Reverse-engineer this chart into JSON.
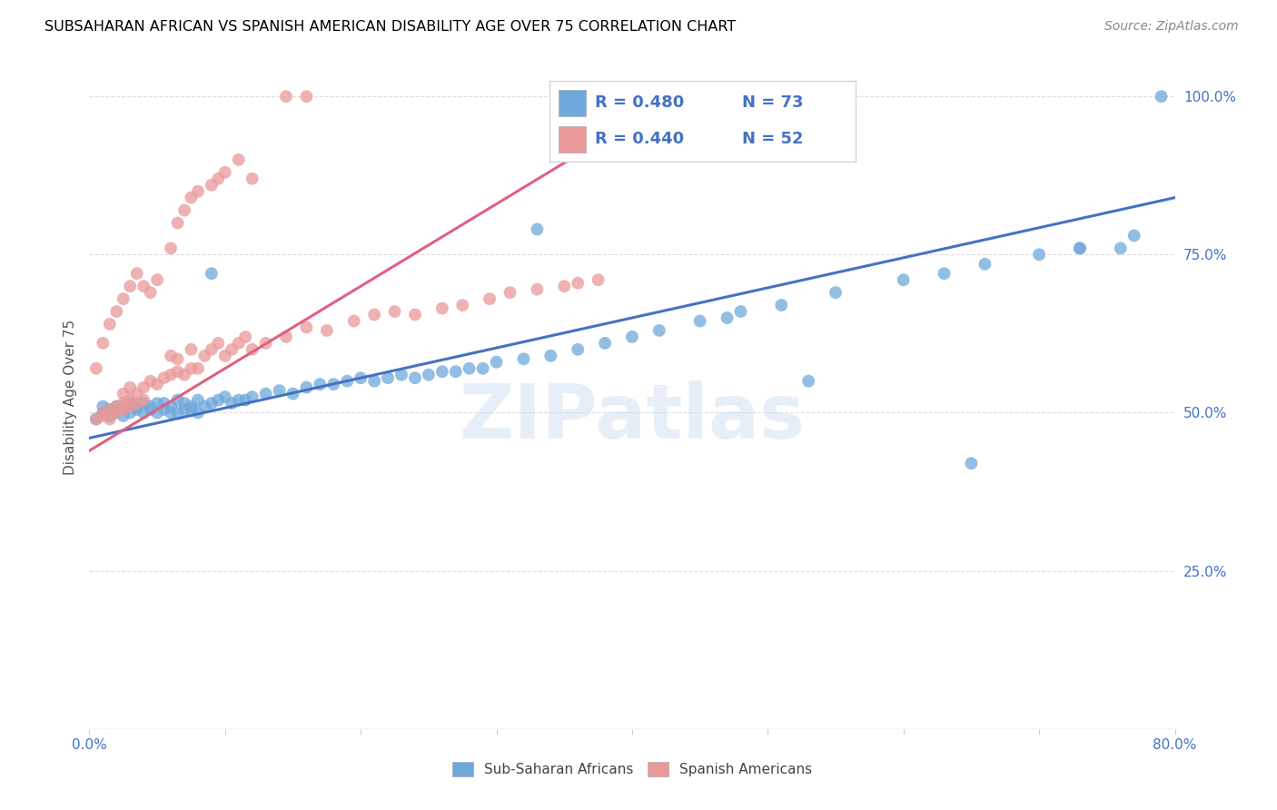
{
  "title": "SUBSAHARAN AFRICAN VS SPANISH AMERICAN DISABILITY AGE OVER 75 CORRELATION CHART",
  "source": "Source: ZipAtlas.com",
  "ylabel": "Disability Age Over 75",
  "watermark": "ZIPatlas",
  "xlim": [
    0.0,
    0.8
  ],
  "ylim": [
    0.0,
    1.05
  ],
  "yticks_right": [
    0.25,
    0.5,
    0.75,
    1.0
  ],
  "ytick_right_labels": [
    "25.0%",
    "50.0%",
    "75.0%",
    "100.0%"
  ],
  "blue_color": "#6fa8dc",
  "pink_color": "#ea9999",
  "blue_line_color": "#4472c4",
  "pink_line_color": "#e06080",
  "legend_label_blue": "Sub-Saharan Africans",
  "legend_label_pink": "Spanish Americans",
  "blue_scatter_x": [
    0.005,
    0.01,
    0.01,
    0.015,
    0.015,
    0.02,
    0.02,
    0.025,
    0.025,
    0.03,
    0.03,
    0.035,
    0.035,
    0.04,
    0.04,
    0.045,
    0.045,
    0.05,
    0.05,
    0.055,
    0.055,
    0.06,
    0.06,
    0.065,
    0.065,
    0.07,
    0.07,
    0.075,
    0.075,
    0.08,
    0.08,
    0.085,
    0.09,
    0.095,
    0.1,
    0.105,
    0.11,
    0.115,
    0.12,
    0.13,
    0.14,
    0.15,
    0.16,
    0.17,
    0.18,
    0.19,
    0.2,
    0.21,
    0.22,
    0.23,
    0.24,
    0.25,
    0.26,
    0.27,
    0.28,
    0.29,
    0.3,
    0.32,
    0.34,
    0.36,
    0.38,
    0.4,
    0.42,
    0.45,
    0.48,
    0.51,
    0.55,
    0.6,
    0.63,
    0.66,
    0.7,
    0.73,
    0.77
  ],
  "blue_scatter_y": [
    0.49,
    0.5,
    0.51,
    0.495,
    0.505,
    0.5,
    0.51,
    0.495,
    0.51,
    0.5,
    0.515,
    0.505,
    0.51,
    0.5,
    0.515,
    0.505,
    0.51,
    0.5,
    0.515,
    0.505,
    0.515,
    0.5,
    0.51,
    0.5,
    0.52,
    0.505,
    0.515,
    0.505,
    0.51,
    0.5,
    0.52,
    0.51,
    0.515,
    0.52,
    0.525,
    0.515,
    0.52,
    0.52,
    0.525,
    0.53,
    0.535,
    0.53,
    0.54,
    0.545,
    0.545,
    0.55,
    0.555,
    0.55,
    0.555,
    0.56,
    0.555,
    0.56,
    0.565,
    0.565,
    0.57,
    0.57,
    0.58,
    0.585,
    0.59,
    0.6,
    0.61,
    0.62,
    0.63,
    0.645,
    0.66,
    0.67,
    0.69,
    0.71,
    0.72,
    0.735,
    0.75,
    0.76,
    0.78
  ],
  "blue_outlier_x": [
    0.09,
    0.33,
    0.47,
    0.53,
    0.65,
    0.73,
    0.76,
    0.79
  ],
  "blue_outlier_y": [
    0.72,
    0.79,
    0.65,
    0.55,
    0.42,
    0.76,
    0.76,
    1.0
  ],
  "pink_scatter_x": [
    0.005,
    0.01,
    0.01,
    0.015,
    0.015,
    0.02,
    0.02,
    0.025,
    0.025,
    0.025,
    0.03,
    0.03,
    0.03,
    0.035,
    0.035,
    0.04,
    0.04,
    0.045,
    0.05,
    0.055,
    0.06,
    0.06,
    0.065,
    0.065,
    0.07,
    0.075,
    0.075,
    0.08,
    0.085,
    0.09,
    0.095,
    0.1,
    0.105,
    0.11,
    0.115,
    0.12,
    0.13,
    0.145,
    0.16,
    0.175,
    0.195,
    0.21,
    0.225,
    0.24,
    0.26,
    0.275,
    0.295,
    0.31,
    0.33,
    0.35,
    0.36,
    0.375
  ],
  "pink_scatter_y": [
    0.49,
    0.495,
    0.5,
    0.49,
    0.505,
    0.5,
    0.51,
    0.505,
    0.515,
    0.53,
    0.51,
    0.52,
    0.54,
    0.515,
    0.53,
    0.52,
    0.54,
    0.55,
    0.545,
    0.555,
    0.56,
    0.59,
    0.565,
    0.585,
    0.56,
    0.57,
    0.6,
    0.57,
    0.59,
    0.6,
    0.61,
    0.59,
    0.6,
    0.61,
    0.62,
    0.6,
    0.61,
    0.62,
    0.635,
    0.63,
    0.645,
    0.655,
    0.66,
    0.655,
    0.665,
    0.67,
    0.68,
    0.69,
    0.695,
    0.7,
    0.705,
    0.71
  ],
  "pink_outlier_x": [
    0.005,
    0.01,
    0.015,
    0.02,
    0.025,
    0.03,
    0.035,
    0.04,
    0.045,
    0.05,
    0.06,
    0.065,
    0.07,
    0.075,
    0.08,
    0.09,
    0.095,
    0.1,
    0.11,
    0.12,
    0.145,
    0.16
  ],
  "pink_outlier_y": [
    0.57,
    0.61,
    0.64,
    0.66,
    0.68,
    0.7,
    0.72,
    0.7,
    0.69,
    0.71,
    0.76,
    0.8,
    0.82,
    0.84,
    0.85,
    0.86,
    0.87,
    0.88,
    0.9,
    0.87,
    1.0,
    1.0
  ],
  "blue_line_x0": 0.0,
  "blue_line_x1": 0.8,
  "blue_line_y0": 0.46,
  "blue_line_y1": 0.84,
  "pink_line_x0": 0.0,
  "pink_line_x1": 0.4,
  "pink_line_y0": 0.44,
  "pink_line_y1": 0.96,
  "background_color": "#ffffff",
  "grid_color": "#dddddd",
  "title_color": "#000000",
  "axis_color": "#4472c4"
}
